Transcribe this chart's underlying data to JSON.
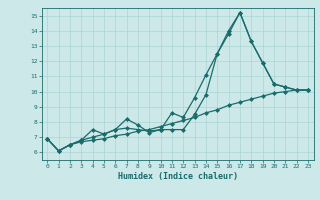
{
  "xlabel": "Humidex (Indice chaleur)",
  "background_color": "#cce8e8",
  "line_color": "#1a6b6b",
  "grid_color": "#aad4d4",
  "xlim": [
    -0.5,
    23.5
  ],
  "ylim": [
    5.5,
    15.5
  ],
  "xticks": [
    0,
    1,
    2,
    3,
    4,
    5,
    6,
    7,
    8,
    9,
    10,
    11,
    12,
    13,
    14,
    15,
    16,
    17,
    18,
    19,
    20,
    21,
    22,
    23
  ],
  "yticks": [
    6,
    7,
    8,
    9,
    10,
    11,
    12,
    13,
    14,
    15
  ],
  "series": [
    {
      "x": [
        0,
        1,
        2,
        3,
        4,
        5,
        6,
        7,
        8,
        9,
        10,
        11,
        12,
        13,
        14,
        15,
        16,
        17,
        18,
        19,
        20,
        21,
        22,
        23
      ],
      "y": [
        6.9,
        6.1,
        6.5,
        6.8,
        7.5,
        7.2,
        7.5,
        8.2,
        7.8,
        7.3,
        7.5,
        8.6,
        8.3,
        9.6,
        11.1,
        12.5,
        14.0,
        15.2,
        13.3,
        11.9,
        10.5,
        10.3,
        10.1,
        10.1
      ]
    },
    {
      "x": [
        0,
        1,
        2,
        3,
        4,
        5,
        6,
        7,
        8,
        9,
        10,
        11,
        12,
        13,
        14,
        15,
        16,
        17,
        18,
        19,
        20,
        21,
        22,
        23
      ],
      "y": [
        6.9,
        6.1,
        6.5,
        6.8,
        7.0,
        7.2,
        7.5,
        7.6,
        7.5,
        7.4,
        7.5,
        7.5,
        7.5,
        8.5,
        9.8,
        12.5,
        13.8,
        15.2,
        13.3,
        11.9,
        10.5,
        10.3,
        10.1,
        10.1
      ]
    },
    {
      "x": [
        0,
        1,
        2,
        3,
        4,
        5,
        6,
        7,
        8,
        9,
        10,
        11,
        12,
        13,
        14,
        15,
        16,
        17,
        18,
        19,
        20,
        21,
        22,
        23
      ],
      "y": [
        6.9,
        6.1,
        6.5,
        6.7,
        6.8,
        6.9,
        7.1,
        7.2,
        7.4,
        7.5,
        7.7,
        7.9,
        8.1,
        8.3,
        8.6,
        8.8,
        9.1,
        9.3,
        9.5,
        9.7,
        9.9,
        10.0,
        10.1,
        10.1
      ]
    }
  ]
}
